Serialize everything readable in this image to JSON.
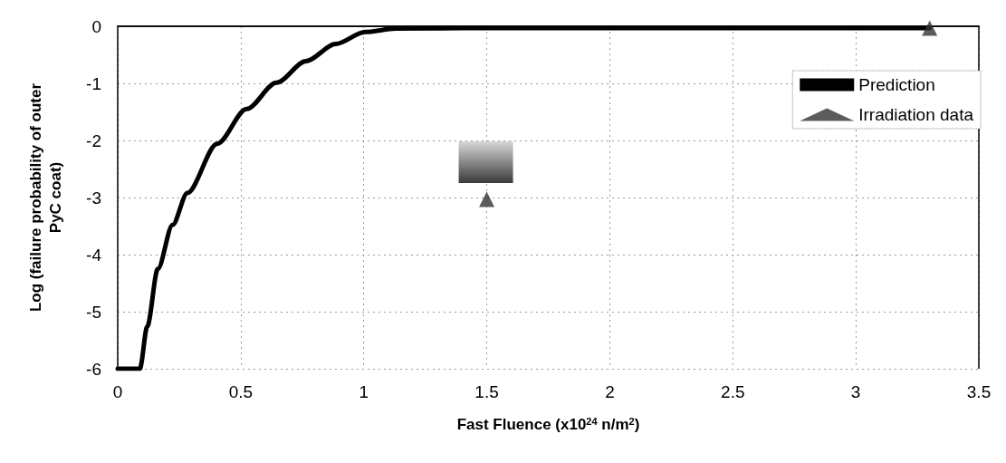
{
  "chart_data": {
    "type": "line",
    "xlabel": "Fast Fluence (x10$^{24}$ n/m$^{2}$)",
    "ylabel": "Log (failure probability of outer\nPyC coat)",
    "series": [
      {
        "name": "Prediction",
        "color": "#000000",
        "marker": "none",
        "x": [
          0,
          0.09,
          0.12,
          0.163,
          0.223,
          0.283,
          0.404,
          0.524,
          0.645,
          0.765,
          0.886,
          1.006,
          1.13,
          1.5,
          2,
          2.5,
          3,
          3.3
        ],
        "values": [
          -6,
          -6,
          -5.26,
          -4.25,
          -3.48,
          -2.92,
          -2.06,
          -1.45,
          -0.99,
          -0.61,
          -0.31,
          -0.1,
          -0.04,
          -0.03,
          -0.03,
          -0.03,
          -0.03,
          -0.03
        ]
      },
      {
        "name": "Irradiation data",
        "type": "scatter",
        "color": "#333333",
        "marker": "triangle",
        "x": [
          1.5,
          3.3
        ],
        "values": [
          -3.03,
          -0.03
        ]
      }
    ],
    "xlim": [
      0,
      3.5
    ],
    "xticks": [
      0,
      0.5,
      1,
      1.5,
      2,
      2.5,
      3,
      3.5
    ],
    "ylim": [
      -6,
      0
    ],
    "yticks": [
      -6,
      -5,
      -4,
      -3,
      -2,
      -1,
      0
    ],
    "grid": true,
    "legend": "top right"
  }
}
